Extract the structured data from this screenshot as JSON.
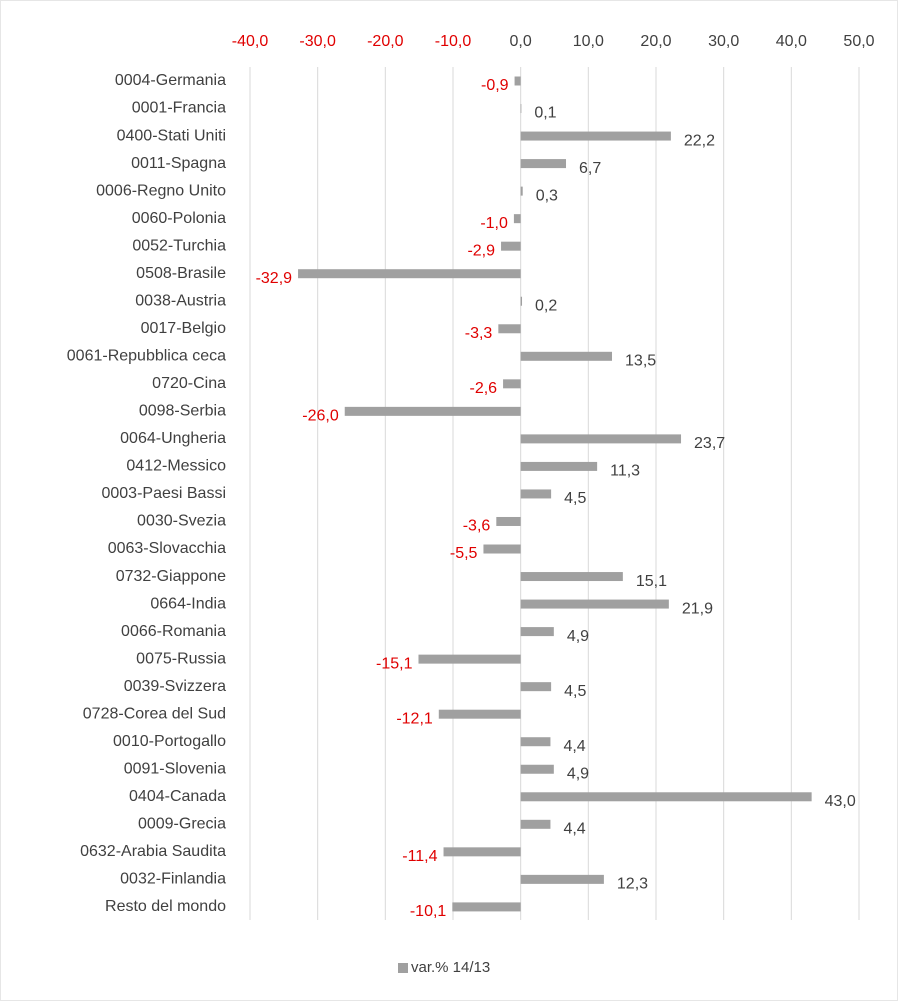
{
  "chart_data": {
    "type": "hbar",
    "categories": [
      "0004-Germania",
      "0001-Francia",
      "0400-Stati Uniti",
      "0011-Spagna",
      "0006-Regno Unito",
      "0060-Polonia",
      "0052-Turchia",
      "0508-Brasile",
      "0038-Austria",
      "0017-Belgio",
      "0061-Repubblica ceca",
      "0720-Cina",
      "0098-Serbia",
      "0064-Ungheria",
      "0412-Messico",
      "0003-Paesi Bassi",
      "0030-Svezia",
      "0063-Slovacchia",
      "0732-Giappone",
      "0664-India",
      "0066-Romania",
      "0075-Russia",
      "0039-Svizzera",
      "0728-Corea del Sud",
      "0010-Portogallo",
      "0091-Slovenia",
      "0404-Canada",
      "0009-Grecia",
      "0632-Arabia Saudita",
      "0032-Finlandia",
      "Resto del mondo"
    ],
    "series": [
      {
        "name": "var.% 14/13",
        "color": "#a0a0a0",
        "values": [
          -0.9,
          0.1,
          22.2,
          6.7,
          0.3,
          -1.0,
          -2.9,
          -32.9,
          0.2,
          -3.3,
          13.5,
          -2.6,
          -26.0,
          23.7,
          11.3,
          4.5,
          -3.6,
          -5.5,
          15.1,
          21.9,
          4.9,
          -15.1,
          4.5,
          -12.1,
          4.4,
          4.9,
          43.0,
          4.4,
          -11.4,
          12.3,
          -10.1
        ],
        "value_labels": [
          "-0,9",
          "0,1",
          "22,2",
          "6,7",
          "0,3",
          "-1,0",
          "-2,9",
          "-32,9",
          "0,2",
          "-3,3",
          "13,5",
          "-2,6",
          "-26,0",
          "23,7",
          "11,3",
          "4,5",
          "-3,6",
          "-5,5",
          "15,1",
          "21,9",
          "4,9",
          "-15,1",
          "4,5",
          "-12,1",
          "4,4",
          "4,9",
          "43,0",
          "4,4",
          "-11,4",
          "12,3",
          "-10,1"
        ]
      }
    ],
    "xlim": [
      -40,
      50
    ],
    "xticks": [
      {
        "value": -40,
        "label": "-40,0"
      },
      {
        "value": -30,
        "label": "-30,0"
      },
      {
        "value": -20,
        "label": "-20,0"
      },
      {
        "value": -10,
        "label": "-10,0"
      },
      {
        "value": 0,
        "label": "0,0"
      },
      {
        "value": 10,
        "label": "10,0"
      },
      {
        "value": 20,
        "label": "20,0"
      },
      {
        "value": 30,
        "label": "30,0"
      },
      {
        "value": 40,
        "label": "40,0"
      },
      {
        "value": 50,
        "label": "50,0"
      }
    ],
    "negative_color": "#e00000",
    "positive_color": "#404040",
    "grid": true,
    "legend": "bottom"
  }
}
